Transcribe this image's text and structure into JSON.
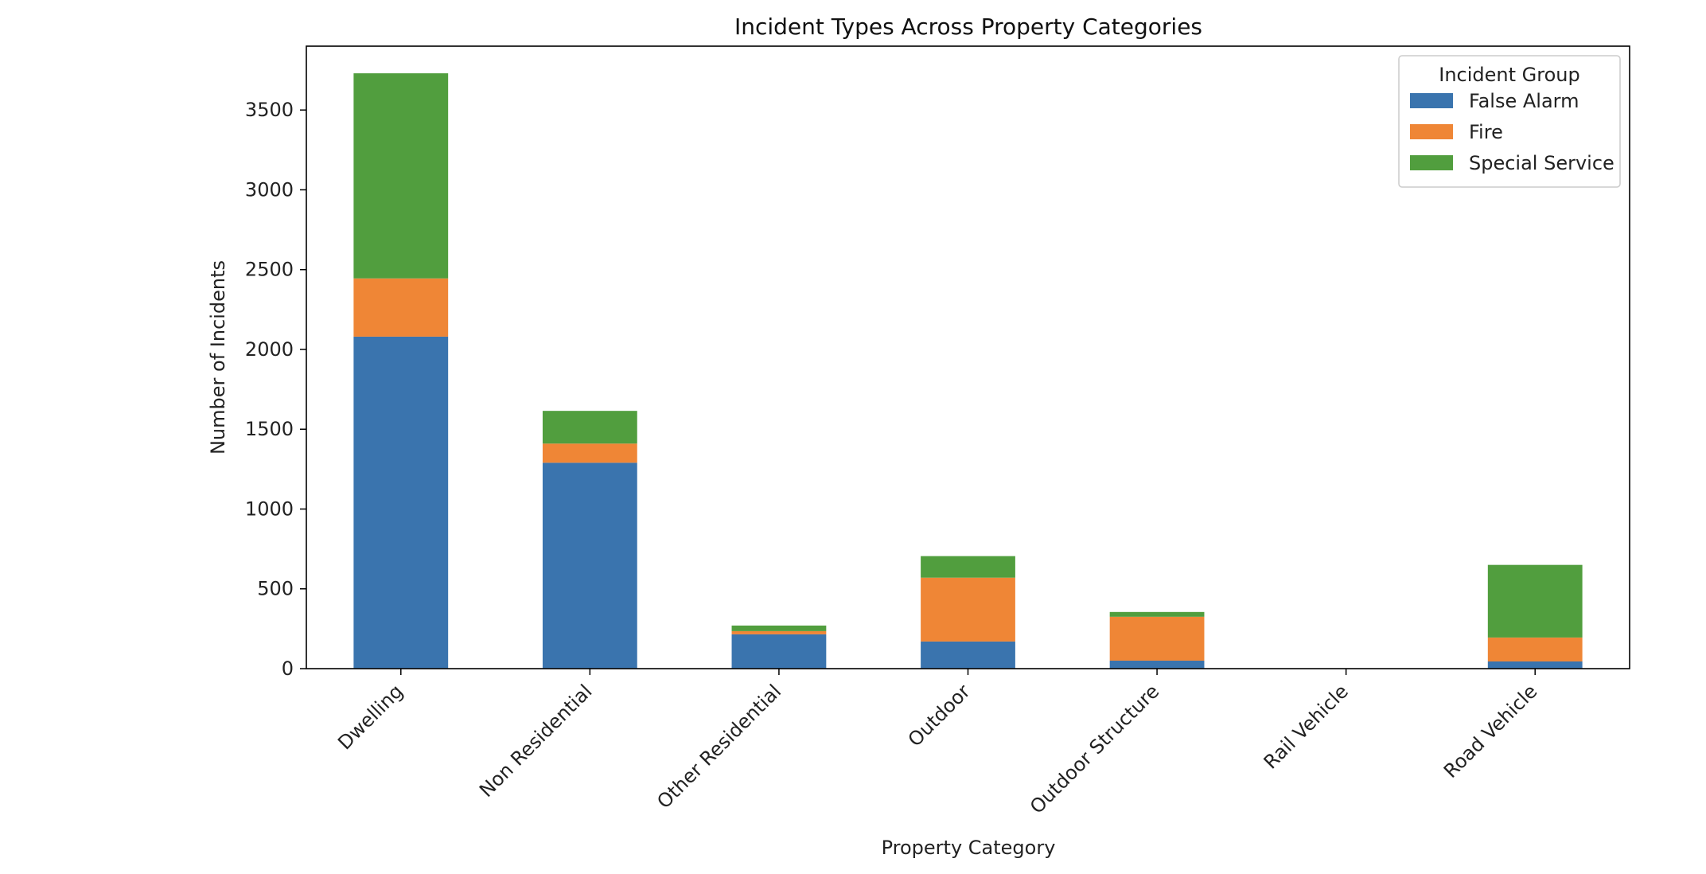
{
  "chart_data": {
    "type": "bar",
    "stacked": true,
    "title": "Incident Types Across Property Categories",
    "xlabel": "Property Category",
    "ylabel": "Number of Incidents",
    "ylim": [
      0,
      3900
    ],
    "yticks": [
      0,
      500,
      1000,
      1500,
      2000,
      2500,
      3000,
      3500
    ],
    "categories": [
      "Dwelling",
      "Non Residential",
      "Other Residential",
      "Outdoor",
      "Outdoor Structure",
      "Rail Vehicle",
      "Road Vehicle"
    ],
    "series": [
      {
        "name": "False Alarm",
        "color": "#3a74ae",
        "values": [
          2080,
          1290,
          215,
          170,
          50,
          0,
          45
        ]
      },
      {
        "name": "Fire",
        "color": "#ef8636",
        "values": [
          365,
          120,
          20,
          400,
          275,
          0,
          150
        ]
      },
      {
        "name": "Special Service",
        "color": "#519e3e",
        "values": [
          1285,
          205,
          35,
          135,
          30,
          0,
          455
        ]
      }
    ],
    "legend": {
      "title": "Incident Group",
      "position": "top-right"
    },
    "grid": false
  }
}
